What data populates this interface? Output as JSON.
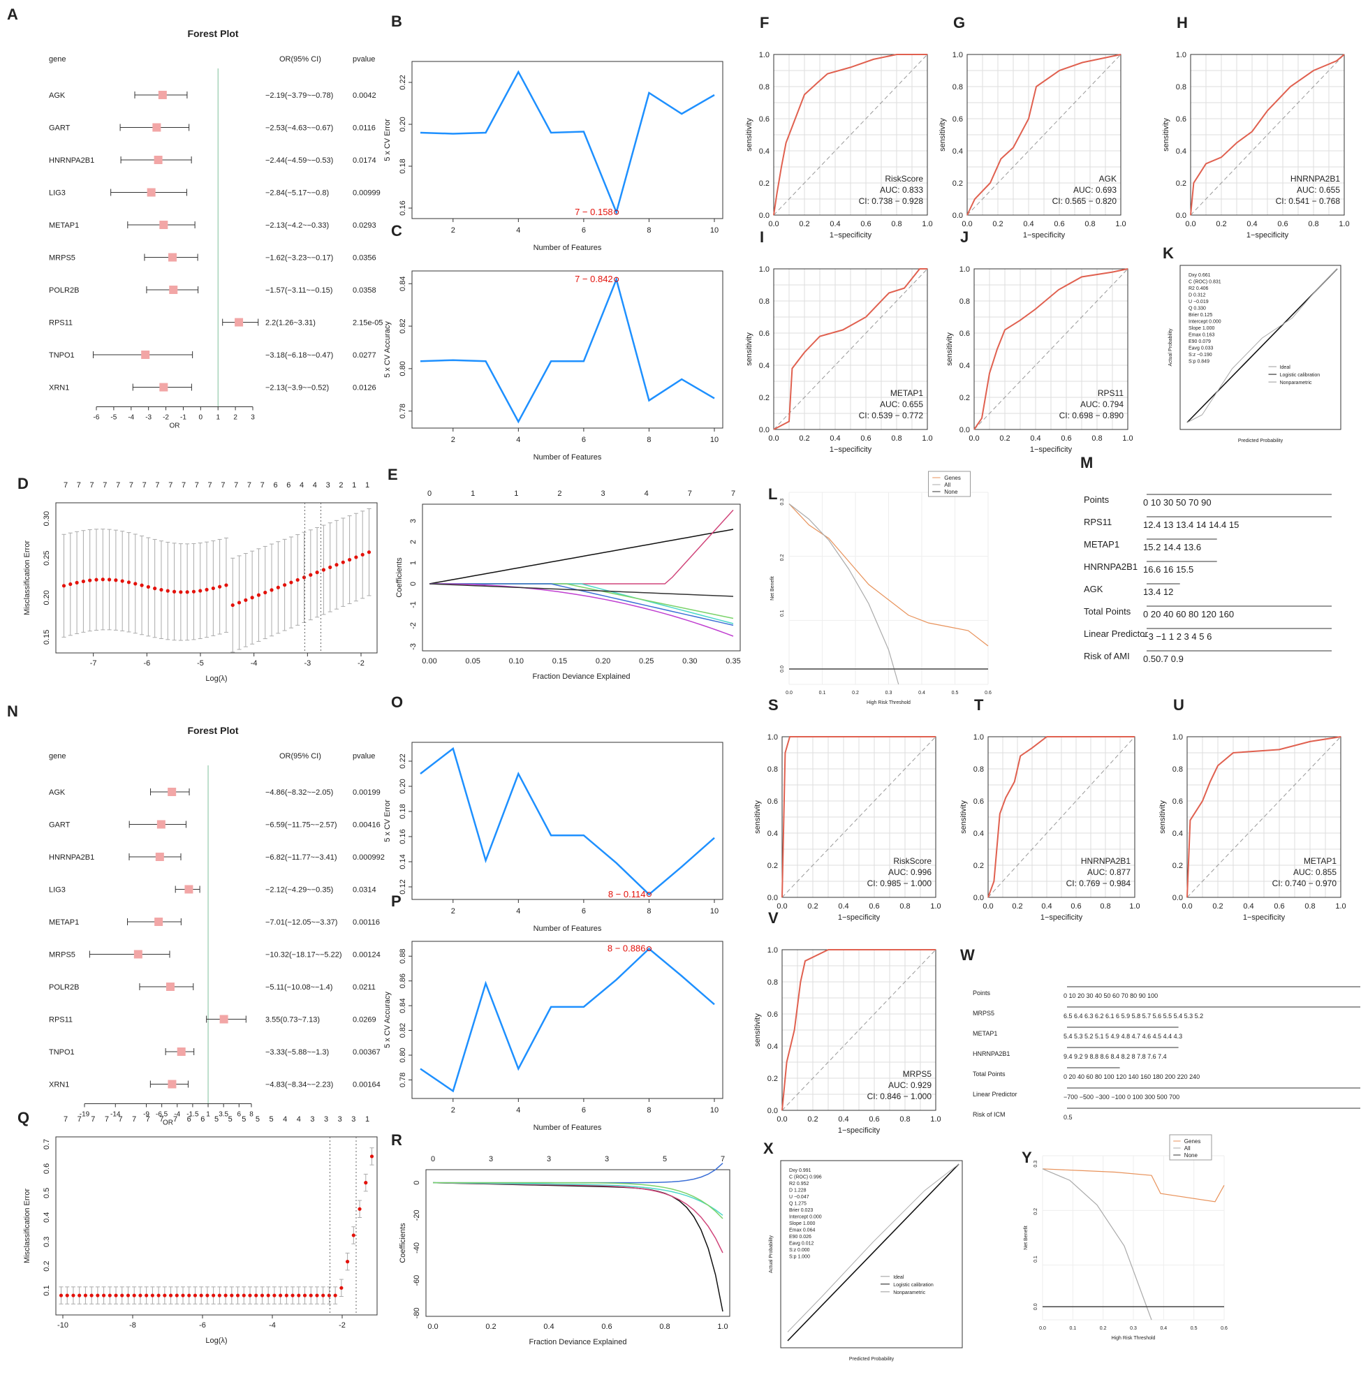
{
  "colors": {
    "accent_blue": "#1e90ff",
    "roc_red": "#e0604f",
    "forest_box": "#f2a6a6",
    "dca_orange": "#e8925a",
    "lasso_red": "#e3120b",
    "ref_green": "#7fbf9b",
    "grid": "#dddddd"
  },
  "forest_top": {
    "panel": "A",
    "title": "Forest Plot",
    "col_gene": "gene",
    "col_or": "OR(95% CI)",
    "col_p": "pvalue",
    "axis_label": "OR",
    "ticks": [
      "-6",
      "-5",
      "-4",
      "-3",
      "-2",
      "-1",
      "0",
      "1",
      "2",
      "3"
    ],
    "rows": [
      {
        "gene": "AGK",
        "or": "−2.19(−3.79~−0.78)",
        "p": "0.0042",
        "est": -2.19,
        "lo": -3.79,
        "hi": -0.78
      },
      {
        "gene": "GART",
        "or": "−2.53(−4.63~−0.67)",
        "p": "0.0116",
        "est": -2.53,
        "lo": -4.63,
        "hi": -0.67
      },
      {
        "gene": "HNRNPA2B1",
        "or": "−2.44(−4.59~−0.53)",
        "p": "0.0174",
        "est": -2.44,
        "lo": -4.59,
        "hi": -0.53
      },
      {
        "gene": "LIG3",
        "or": "−2.84(−5.17~−0.8)",
        "p": "0.00999",
        "est": -2.84,
        "lo": -5.17,
        "hi": -0.8
      },
      {
        "gene": "METAP1",
        "or": "−2.13(−4.2~−0.33)",
        "p": "0.0293",
        "est": -2.13,
        "lo": -4.2,
        "hi": -0.33
      },
      {
        "gene": "MRPS5",
        "or": "−1.62(−3.23~−0.17)",
        "p": "0.0356",
        "est": -1.62,
        "lo": -3.23,
        "hi": -0.17
      },
      {
        "gene": "POLR2B",
        "or": "−1.57(−3.11~−0.15)",
        "p": "0.0358",
        "est": -1.57,
        "lo": -3.11,
        "hi": -0.15
      },
      {
        "gene": "RPS11",
        "or": "2.2(1.26~3.31)",
        "p": "2.15e-05",
        "est": 2.2,
        "lo": 1.26,
        "hi": 3.31
      },
      {
        "gene": "TNPO1",
        "or": "−3.18(−6.18~−0.47)",
        "p": "0.0277",
        "est": -3.18,
        "lo": -6.18,
        "hi": -0.47
      },
      {
        "gene": "XRN1",
        "or": "−2.13(−3.9~−0.52)",
        "p": "0.0126",
        "est": -2.13,
        "lo": -3.9,
        "hi": -0.52
      }
    ]
  },
  "cv_B": {
    "panel": "B",
    "ylabel": "5 x CV Error",
    "xlabel": "Number of Features",
    "x": [
      1,
      2,
      3,
      4,
      5,
      6,
      7,
      8,
      9,
      10
    ],
    "y": [
      0.196,
      0.1955,
      0.196,
      0.225,
      0.196,
      0.1965,
      0.158,
      0.215,
      0.205,
      0.214
    ],
    "best": "7 − 0.158",
    "best_idx": 6,
    "ylim": [
      0.155,
      0.23
    ],
    "yticks": [
      "0.16",
      "0.18",
      "0.20",
      "0.22"
    ],
    "xticks": [
      "2",
      "4",
      "6",
      "8",
      "10"
    ]
  },
  "cv_C": {
    "panel": "C",
    "ylabel": "5 x CV Accuracy",
    "xlabel": "Number of Features",
    "x": [
      1,
      2,
      3,
      4,
      5,
      6,
      7,
      8,
      9,
      10
    ],
    "y": [
      0.8035,
      0.804,
      0.8035,
      0.775,
      0.8035,
      0.8035,
      0.842,
      0.785,
      0.795,
      0.786
    ],
    "best": "7 − 0.842",
    "best_idx": 6,
    "ylim": [
      0.772,
      0.846
    ],
    "yticks": [
      "0.78",
      "0.80",
      "0.82",
      "0.84"
    ],
    "xticks": [
      "2",
      "4",
      "6",
      "8",
      "10"
    ]
  },
  "lasso_D": {
    "panel": "D",
    "ylabel": "Misclassification Error",
    "xlabel": "Log(λ)",
    "toplabels": [
      "7",
      "7",
      "7",
      "7",
      "7",
      "7",
      "7",
      "7",
      "7",
      "7",
      "7",
      "7",
      "7",
      "7",
      "7",
      "7",
      "6",
      "6",
      "4",
      "4",
      "3",
      "2",
      "1",
      "1"
    ],
    "yticks": [
      "0.15",
      "0.20",
      "0.25",
      "0.30"
    ],
    "xticks": [
      "-7",
      "-6",
      "-5",
      "-4",
      "-3",
      "-2"
    ]
  },
  "path_E": {
    "panel": "E",
    "ylabel": "Coefficients",
    "xlabel": "Fraction Deviance Explained",
    "toplabels": [
      "0",
      "1",
      "1",
      "2",
      "3",
      "4",
      "7",
      "7"
    ],
    "yticks": [
      "-3",
      "-2",
      "-1",
      "0",
      "1",
      "2",
      "3"
    ],
    "xticks": [
      "0.00",
      "0.05",
      "0.10",
      "0.15",
      "0.20",
      "0.25",
      "0.30",
      "0.35"
    ]
  },
  "roc_top": [
    {
      "panel": "F",
      "name": "RiskScore",
      "auc": "AUC: 0.833",
      "ci": "CI: 0.738 − 0.928"
    },
    {
      "panel": "G",
      "name": "AGK",
      "auc": "AUC: 0.693",
      "ci": "CI: 0.565 − 0.820"
    },
    {
      "panel": "H",
      "name": "HNRNPA2B1",
      "auc": "AUC: 0.655",
      "ci": "CI: 0.541 − 0.768"
    },
    {
      "panel": "I",
      "name": "METAP1",
      "auc": "AUC: 0.655",
      "ci": "CI: 0.539 − 0.772"
    },
    {
      "panel": "J",
      "name": "RPS11",
      "auc": "AUC: 0.794",
      "ci": "CI: 0.698 − 0.890"
    }
  ],
  "roc_bottom": [
    {
      "panel": "S",
      "name": "RiskScore",
      "auc": "AUC: 0.996",
      "ci": "CI: 0.985 − 1.000"
    },
    {
      "panel": "T",
      "name": "HNRNPA2B1",
      "auc": "AUC: 0.877",
      "ci": "CI: 0.769 − 0.984"
    },
    {
      "panel": "U",
      "name": "METAP1",
      "auc": "AUC: 0.855",
      "ci": "CI: 0.740 − 0.970"
    },
    {
      "panel": "V",
      "name": "MRPS5",
      "auc": "AUC: 0.929",
      "ci": "CI: 0.846 − 1.000"
    }
  ],
  "roc_axes": {
    "xlabel": "1−specificity",
    "ylabel": "sensitivity",
    "ticks": [
      "0.0",
      "0.2",
      "0.4",
      "0.6",
      "0.8",
      "1.0"
    ]
  },
  "cal_K": {
    "panel": "K",
    "xlabel": "Predicted Probability",
    "ylabel": "Actual Probability",
    "stats": [
      "Dxy  0.661",
      "C (ROC)  0.831",
      "R2  0.406",
      "D  0.312",
      "U  −0.019",
      "Q  0.330",
      "Brier  0.125",
      "Intercept  0.000",
      "Slope  1.000",
      "Emax  0.163",
      "E90  0.079",
      "Eavg  0.033",
      "S:z  −0.190",
      "S:p  0.849"
    ],
    "legend": [
      "Ideal",
      "Logistic calibration",
      "Nonparametric"
    ]
  },
  "dca_L": {
    "panel": "L",
    "xlabel": "High Risk Threshold",
    "ylabel": "Net Benefit",
    "legend": [
      "Genes",
      "All",
      "None"
    ]
  },
  "nomo_M": {
    "panel": "M",
    "rows": [
      {
        "label": "Points",
        "scale": "0    10     30     50     70     90"
      },
      {
        "label": "RPS11",
        "scale": "12.4      13    13.4       14    14.4       15"
      },
      {
        "label": "METAP1",
        "scale": "15.2   14.4    13.6"
      },
      {
        "label": "HNRNPA2B1",
        "scale": "16.6      16    15.5"
      },
      {
        "label": "AGK",
        "scale": "13.4    12"
      },
      {
        "label": "Total Points",
        "scale": "0   20   40   60   80        120         160"
      },
      {
        "label": "Linear Predictor",
        "scale": "−3    −1    1   2   3   4   5   6"
      },
      {
        "label": "Risk of AMI",
        "scale": "0.50.7    0.9"
      }
    ]
  },
  "forest_bottom": {
    "panel": "N",
    "title": "Forest Plot",
    "col_gene": "gene",
    "col_or": "OR(95% CI)",
    "col_p": "pvalue",
    "axis_label": "OR",
    "ticks": [
      "-19",
      "-14",
      "-9",
      "-6.5",
      "-4",
      "-1.5",
      "1",
      "3.5",
      "6",
      "8"
    ],
    "rows": [
      {
        "gene": "AGK",
        "or": "−4.86(−8.32~−2.05)",
        "p": "0.00199",
        "est": -4.86,
        "lo": -8.32,
        "hi": -2.05
      },
      {
        "gene": "GART",
        "or": "−6.59(−11.75~−2.57)",
        "p": "0.00416",
        "est": -6.59,
        "lo": -11.75,
        "hi": -2.57
      },
      {
        "gene": "HNRNPA2B1",
        "or": "−6.82(−11.77~−3.41)",
        "p": "0.000992",
        "est": -6.82,
        "lo": -11.77,
        "hi": -3.41
      },
      {
        "gene": "LIG3",
        "or": "−2.12(−4.29~−0.35)",
        "p": "0.0314",
        "est": -2.12,
        "lo": -4.29,
        "hi": -0.35
      },
      {
        "gene": "METAP1",
        "or": "−7.01(−12.05~−3.37)",
        "p": "0.00116",
        "est": -7.01,
        "lo": -12.05,
        "hi": -3.37
      },
      {
        "gene": "MRPS5",
        "or": "−10.32(−18.17~−5.22)",
        "p": "0.00124",
        "est": -10.32,
        "lo": -18.17,
        "hi": -5.22
      },
      {
        "gene": "POLR2B",
        "or": "−5.11(−10.08~−1.4)",
        "p": "0.0211",
        "est": -5.11,
        "lo": -10.08,
        "hi": -1.4
      },
      {
        "gene": "RPS11",
        "or": "3.55(0.73~7.13)",
        "p": "0.0269",
        "est": 3.55,
        "lo": 0.73,
        "hi": 7.13
      },
      {
        "gene": "TNPO1",
        "or": "−3.33(−5.88~−1.3)",
        "p": "0.00367",
        "est": -3.33,
        "lo": -5.88,
        "hi": -1.3
      },
      {
        "gene": "XRN1",
        "or": "−4.83(−8.34~−2.23)",
        "p": "0.00164",
        "est": -4.83,
        "lo": -8.34,
        "hi": -2.23
      }
    ]
  },
  "cv_O": {
    "panel": "O",
    "ylabel": "5 x CV Error",
    "xlabel": "Number of Features",
    "x": [
      1,
      2,
      3,
      4,
      5,
      6,
      7,
      8,
      9,
      10
    ],
    "y": [
      0.21,
      0.23,
      0.141,
      0.21,
      0.161,
      0.161,
      0.139,
      0.114,
      0.136,
      0.159
    ],
    "best": "8 − 0.114",
    "best_idx": 7,
    "ylim": [
      0.11,
      0.235
    ],
    "yticks": [
      "0.12",
      "0.14",
      "0.16",
      "0.18",
      "0.20",
      "0.22"
    ],
    "xticks": [
      "2",
      "4",
      "6",
      "8",
      "10"
    ]
  },
  "cv_P": {
    "panel": "P",
    "ylabel": "5 x CV Accuracy",
    "xlabel": "Number of Features",
    "x": [
      1,
      2,
      3,
      4,
      5,
      6,
      7,
      8,
      9,
      10
    ],
    "y": [
      0.789,
      0.771,
      0.858,
      0.789,
      0.839,
      0.839,
      0.861,
      0.886,
      0.864,
      0.841
    ],
    "best": "8 − 0.886",
    "best_idx": 7,
    "ylim": [
      0.765,
      0.892
    ],
    "yticks": [
      "0.78",
      "0.80",
      "0.82",
      "0.84",
      "0.86",
      "0.88"
    ],
    "xticks": [
      "2",
      "4",
      "6",
      "8",
      "10"
    ]
  },
  "lasso_Q": {
    "panel": "Q",
    "ylabel": "Misclassification Error",
    "xlabel": "Log(λ)",
    "toplabels": [
      "7",
      "7",
      "7",
      "7",
      "7",
      "7",
      "7",
      "7",
      "7",
      "6",
      "6",
      "5",
      "5",
      "5",
      "5",
      "5",
      "4",
      "4",
      "3",
      "3",
      "3",
      "3",
      "1"
    ],
    "yticks": [
      "0.1",
      "0.2",
      "0.3",
      "0.4",
      "0.5",
      "0.6",
      "0.7"
    ],
    "xticks": [
      "-10",
      "-8",
      "-6",
      "-4",
      "-2"
    ]
  },
  "path_R": {
    "panel": "R",
    "ylabel": "Coefficients",
    "xlabel": "Fraction Deviance Explained",
    "toplabels": [
      "0",
      "3",
      "3",
      "3",
      "5",
      "7"
    ],
    "yticks": [
      "-80",
      "-60",
      "-40",
      "-20",
      "0"
    ],
    "xticks": [
      "0.0",
      "0.2",
      "0.4",
      "0.6",
      "0.8",
      "1.0"
    ]
  },
  "nomo_W": {
    "panel": "W",
    "rows": [
      {
        "label": "Points",
        "scale": "0        10        20        30        40        50        60        70        80        90       100"
      },
      {
        "label": "MRPS5",
        "scale": "6.5   6.4   6.3   6.2   6.1    6    5.9   5.8   5.7   5.6   5.5   5.4   5.3   5.2"
      },
      {
        "label": "METAP1",
        "scale": "5.4    5.3    5.2    5.1    5    4.9    4.8    4.7    4.6    4.5    4.4    4.3"
      },
      {
        "label": "HNRNPA2B1",
        "scale": "9.4   9.2    9    8.8   8.6   8.4   8.2    8    7.8   7.6   7.4"
      },
      {
        "label": "Total Points",
        "scale": "0    20    40    60    80   100   120   140   160   180   200   220   240"
      },
      {
        "label": "Linear Predictor",
        "scale": "−700    −500    −300   −100  0  100    300    500    700"
      },
      {
        "label": "Risk of ICM",
        "scale": "0.5"
      }
    ]
  },
  "cal_X": {
    "panel": "X",
    "xlabel": "Predicted Probability",
    "ylabel": "Actual Probability",
    "stats": [
      "Dxy  0.991",
      "C (ROC)  0.996",
      "R2  0.952",
      "D  1.228",
      "U  −0.047",
      "Q  1.275",
      "Brier  0.023",
      "Intercept  0.000",
      "Slope  1.000",
      "Emax  0.064",
      "E90  0.026",
      "Eavg  0.012",
      "S:z  0.000",
      "S:p  1.000"
    ],
    "legend": [
      "Ideal",
      "Logistic calibration",
      "Nonparametric"
    ]
  },
  "dca_Y": {
    "panel": "Y",
    "xlabel": "High Risk Threshold",
    "ylabel": "Net Benefit",
    "legend": [
      "Genes",
      "All",
      "None"
    ]
  },
  "chart_data": [
    {
      "type": "line",
      "panel": "B",
      "title": "",
      "xlabel": "Number of Features",
      "ylabel": "5 x CV Error",
      "x": [
        1,
        2,
        3,
        4,
        5,
        6,
        7,
        8,
        9,
        10
      ],
      "values": [
        0.196,
        0.1955,
        0.196,
        0.225,
        0.196,
        0.1965,
        0.158,
        0.215,
        0.205,
        0.214
      ],
      "annotation": "7 − 0.158"
    },
    {
      "type": "line",
      "panel": "C",
      "xlabel": "Number of Features",
      "ylabel": "5 x CV Accuracy",
      "x": [
        1,
        2,
        3,
        4,
        5,
        6,
        7,
        8,
        9,
        10
      ],
      "values": [
        0.8035,
        0.804,
        0.8035,
        0.775,
        0.8035,
        0.8035,
        0.842,
        0.785,
        0.795,
        0.786
      ],
      "annotation": "7 − 0.842"
    },
    {
      "type": "line",
      "panel": "O",
      "xlabel": "Number of Features",
      "ylabel": "5 x CV Error",
      "x": [
        1,
        2,
        3,
        4,
        5,
        6,
        7,
        8,
        9,
        10
      ],
      "values": [
        0.21,
        0.23,
        0.141,
        0.21,
        0.161,
        0.161,
        0.139,
        0.114,
        0.136,
        0.159
      ],
      "annotation": "8 − 0.114"
    },
    {
      "type": "line",
      "panel": "P",
      "xlabel": "Number of Features",
      "ylabel": "5 x CV Accuracy",
      "x": [
        1,
        2,
        3,
        4,
        5,
        6,
        7,
        8,
        9,
        10
      ],
      "values": [
        0.789,
        0.771,
        0.858,
        0.789,
        0.839,
        0.839,
        0.861,
        0.886,
        0.864,
        0.841
      ],
      "annotation": "8 − 0.886"
    },
    {
      "type": "scatter",
      "panel": "A",
      "title": "Forest Plot",
      "categories": [
        "AGK",
        "GART",
        "HNRNPA2B1",
        "LIG3",
        "METAP1",
        "MRPS5",
        "POLR2B",
        "RPS11",
        "TNPO1",
        "XRN1"
      ],
      "values": [
        -2.19,
        -2.53,
        -2.44,
        -2.84,
        -2.13,
        -1.62,
        -1.57,
        2.2,
        -3.18,
        -2.13
      ]
    },
    {
      "type": "scatter",
      "panel": "N",
      "title": "Forest Plot",
      "categories": [
        "AGK",
        "GART",
        "HNRNPA2B1",
        "LIG3",
        "METAP1",
        "MRPS5",
        "POLR2B",
        "RPS11",
        "TNPO1",
        "XRN1"
      ],
      "values": [
        -4.86,
        -6.59,
        -6.82,
        -2.12,
        -7.01,
        -10.32,
        -5.11,
        3.55,
        -3.33,
        -4.83
      ]
    },
    {
      "type": "line",
      "panel": "ROC",
      "series": [
        {
          "name": "RiskScore (F)",
          "auc": 0.833
        },
        {
          "name": "AGK (G)",
          "auc": 0.693
        },
        {
          "name": "HNRNPA2B1 (H)",
          "auc": 0.655
        },
        {
          "name": "METAP1 (I)",
          "auc": 0.655
        },
        {
          "name": "RPS11 (J)",
          "auc": 0.794
        },
        {
          "name": "RiskScore (S)",
          "auc": 0.996
        },
        {
          "name": "HNRNPA2B1 (T)",
          "auc": 0.877
        },
        {
          "name": "METAP1 (U)",
          "auc": 0.855
        },
        {
          "name": "MRPS5 (V)",
          "auc": 0.929
        }
      ]
    }
  ]
}
